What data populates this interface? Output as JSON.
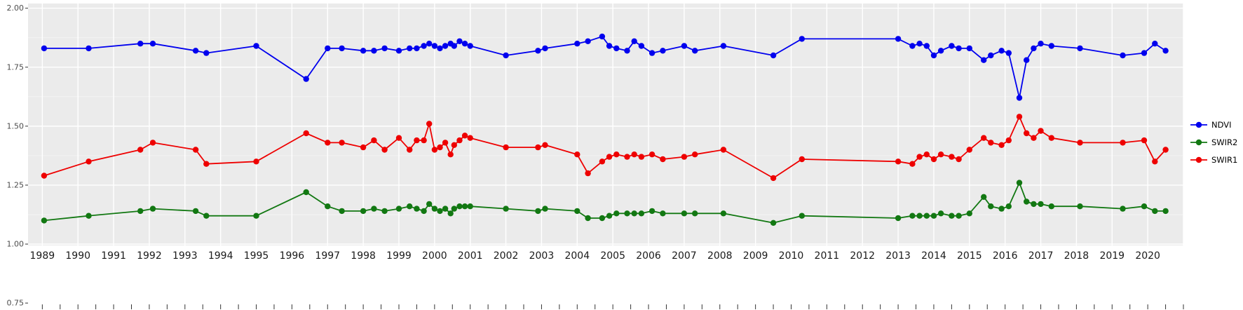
{
  "figure": {
    "background": "#FFFFFF",
    "panel_background": "#EBEBEB",
    "grid_color": "#FFFFFF",
    "axis_text_color": "#4D4D4D",
    "x_label_color": "#1A1A1A",
    "tick_mark_color": "#333333"
  },
  "chart_data": {
    "type": "line",
    "title": "",
    "xlabel": "",
    "ylabel": "",
    "grid": true,
    "legend_position": "right",
    "x_range": [
      1988.6,
      2021.0
    ],
    "y_range": [
      0.75,
      2.02
    ],
    "x_tick_labels": [
      "1989",
      "1990",
      "1991",
      "1992",
      "1993",
      "1994",
      "1995",
      "1996",
      "1997",
      "1998",
      "1999",
      "2000",
      "2001",
      "2002",
      "2003",
      "2004",
      "2005",
      "2006",
      "2007",
      "2008",
      "2009",
      "2010",
      "2011",
      "2012",
      "2013",
      "2014",
      "2015",
      "2016",
      "2017",
      "2018",
      "2019",
      "2020"
    ],
    "y_ticks": [
      2.0,
      1.75,
      1.5,
      1.25,
      1.0,
      0.75
    ],
    "y_tick_labels": [
      "2.00",
      "1.75",
      "1.50",
      "1.25",
      "1.00",
      "0.75"
    ],
    "x": [
      1989.05,
      1990.3,
      1991.75,
      1992.1,
      1993.3,
      1993.6,
      1995.0,
      1996.4,
      1997.0,
      1997.4,
      1998.0,
      1998.3,
      1998.6,
      1999.0,
      1999.3,
      1999.5,
      1999.7,
      1999.85,
      2000.0,
      2000.15,
      2000.3,
      2000.45,
      2000.55,
      2000.7,
      2000.85,
      2001.0,
      2002.0,
      2002.9,
      2003.1,
      2004.0,
      2004.3,
      2004.7,
      2004.9,
      2005.1,
      2005.4,
      2005.6,
      2005.8,
      2006.1,
      2006.4,
      2007.0,
      2007.3,
      2008.1,
      2009.5,
      2010.3,
      2013.0,
      2013.4,
      2013.6,
      2013.8,
      2014.0,
      2014.2,
      2014.5,
      2014.7,
      2015.0,
      2015.4,
      2015.6,
      2015.9,
      2016.1,
      2016.4,
      2016.6,
      2016.8,
      2017.0,
      2017.3,
      2018.1,
      2019.3,
      2019.9,
      2020.2,
      2020.5
    ],
    "series": [
      {
        "name": "NDVI",
        "color": "#0000EE",
        "values": [
          1.83,
          1.83,
          1.85,
          1.85,
          1.82,
          1.81,
          1.84,
          1.7,
          1.83,
          1.83,
          1.82,
          1.82,
          1.83,
          1.82,
          1.83,
          1.83,
          1.84,
          1.85,
          1.84,
          1.83,
          1.84,
          1.85,
          1.84,
          1.86,
          1.85,
          1.84,
          1.8,
          1.82,
          1.83,
          1.85,
          1.86,
          1.88,
          1.84,
          1.83,
          1.82,
          1.86,
          1.84,
          1.81,
          1.82,
          1.84,
          1.82,
          1.84,
          1.8,
          1.87,
          1.87,
          1.84,
          1.85,
          1.84,
          1.8,
          1.82,
          1.84,
          1.83,
          1.83,
          1.78,
          1.8,
          1.82,
          1.81,
          1.62,
          1.78,
          1.83,
          1.85,
          1.84,
          1.83,
          1.8,
          1.81,
          1.85,
          1.82
        ]
      },
      {
        "name": "SWIR2",
        "color": "#127812",
        "values": [
          1.1,
          1.12,
          1.14,
          1.15,
          1.14,
          1.12,
          1.12,
          1.22,
          1.16,
          1.14,
          1.14,
          1.15,
          1.14,
          1.15,
          1.16,
          1.15,
          1.14,
          1.17,
          1.15,
          1.14,
          1.15,
          1.13,
          1.15,
          1.16,
          1.16,
          1.16,
          1.15,
          1.14,
          1.15,
          1.14,
          1.11,
          1.11,
          1.12,
          1.13,
          1.13,
          1.13,
          1.13,
          1.14,
          1.13,
          1.13,
          1.13,
          1.13,
          1.09,
          1.12,
          1.11,
          1.12,
          1.12,
          1.12,
          1.12,
          1.13,
          1.12,
          1.12,
          1.13,
          1.2,
          1.16,
          1.15,
          1.16,
          1.26,
          1.18,
          1.17,
          1.17,
          1.16,
          1.16,
          1.15,
          1.16,
          1.14,
          1.14
        ]
      },
      {
        "name": "SWIR1",
        "color": "#EE0000",
        "values": [
          1.29,
          1.35,
          1.4,
          1.43,
          1.4,
          1.34,
          1.35,
          1.47,
          1.43,
          1.43,
          1.41,
          1.44,
          1.4,
          1.45,
          1.4,
          1.44,
          1.44,
          1.51,
          1.4,
          1.41,
          1.43,
          1.38,
          1.42,
          1.44,
          1.46,
          1.45,
          1.41,
          1.41,
          1.42,
          1.38,
          1.3,
          1.35,
          1.37,
          1.38,
          1.37,
          1.38,
          1.37,
          1.38,
          1.36,
          1.37,
          1.38,
          1.4,
          1.28,
          1.36,
          1.35,
          1.34,
          1.37,
          1.38,
          1.36,
          1.38,
          1.37,
          1.36,
          1.4,
          1.45,
          1.43,
          1.42,
          1.44,
          1.54,
          1.47,
          1.45,
          1.48,
          1.45,
          1.43,
          1.43,
          1.44,
          1.35,
          1.4
        ]
      }
    ],
    "legend_entries": [
      "NDVI",
      "SWIR2",
      "SWIR1"
    ]
  }
}
